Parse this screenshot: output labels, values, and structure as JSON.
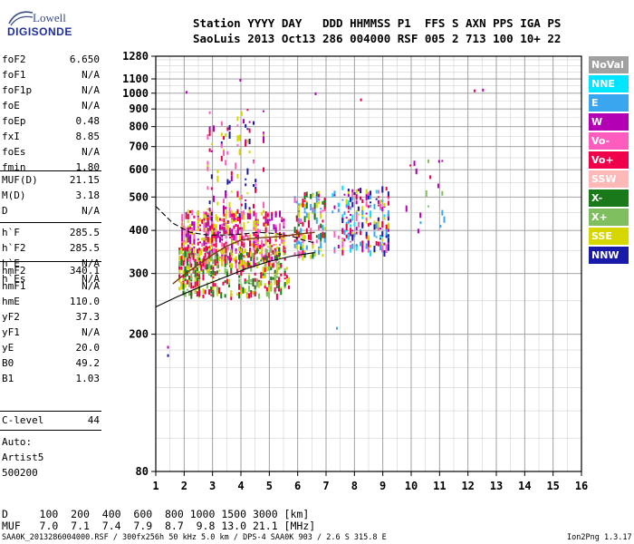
{
  "logo": {
    "line1": "Lowell",
    "line2": "DIGISONDE"
  },
  "header": {
    "line1": "Station YYYY DAY   DDD HHMMSS P1  FFS S AXN PPS IGA PS",
    "line2": "SaoLuis 2013 Oct13 286 004000 RSF 005 2 713 100 10+ 22"
  },
  "params_group1": [
    {
      "k": "foF2",
      "v": "6.650"
    },
    {
      "k": "foF1",
      "v": "N/A"
    },
    {
      "k": "foF1p",
      "v": "N/A"
    },
    {
      "k": "foE",
      "v": "N/A"
    },
    {
      "k": "foEp",
      "v": "0.48"
    },
    {
      "k": "fxI",
      "v": "8.85"
    },
    {
      "k": "foEs",
      "v": "N/A"
    },
    {
      "k": "fmin",
      "v": "1.80"
    }
  ],
  "params_group2": [
    {
      "k": "MUF(D)",
      "v": "21.15"
    },
    {
      "k": "M(D)",
      "v": "3.18"
    },
    {
      "k": "D",
      "v": "N/A"
    }
  ],
  "params_group3": [
    {
      "k": "h`F",
      "v": "285.5"
    },
    {
      "k": "h`F2",
      "v": "285.5"
    },
    {
      "k": "h`E",
      "v": "N/A"
    },
    {
      "k": "h`Es",
      "v": "N/A"
    }
  ],
  "params_group4": [
    {
      "k": "hmF2",
      "v": "340.1"
    },
    {
      "k": "hmF1",
      "v": "N/A"
    },
    {
      "k": "hmE",
      "v": "110.0"
    },
    {
      "k": "yF2",
      "v": "37.3"
    },
    {
      "k": "yF1",
      "v": "N/A"
    },
    {
      "k": "yE",
      "v": "20.0"
    },
    {
      "k": "B0",
      "v": "49.2"
    },
    {
      "k": "B1",
      "v": "1.03"
    }
  ],
  "params_group5": [
    {
      "k": "C-level",
      "v": "44"
    }
  ],
  "notes": {
    "auto": "Auto:",
    "artist": "Artist5",
    "code": "500200"
  },
  "legend": [
    {
      "label": "NoVal",
      "color": "#a0a0a0",
      "text": "#ffffff"
    },
    {
      "label": "NNE",
      "color": "#00e5ff",
      "text": "#ffffff"
    },
    {
      "label": "E",
      "color": "#3ba6f0",
      "text": "#ffffff"
    },
    {
      "label": "W",
      "color": "#b400b4",
      "text": "#ffffff"
    },
    {
      "label": "Vo-",
      "color": "#ff5cc0",
      "text": "#ffffff"
    },
    {
      "label": "Vo+",
      "color": "#f0004a",
      "text": "#ffffff"
    },
    {
      "label": "SSW",
      "color": "#ffb8b8",
      "text": "#ffffff"
    },
    {
      "label": "X-",
      "color": "#1a7a1a",
      "text": "#ffffff"
    },
    {
      "label": "X+",
      "color": "#7fbf5f",
      "text": "#ffffff"
    },
    {
      "label": "SSE",
      "color": "#d6d600",
      "text": "#ffffff"
    },
    {
      "label": "NNW",
      "color": "#1a1aa8",
      "text": "#ffffff"
    }
  ],
  "muf_table": {
    "d_line": "D     100  200  400  600  800 1000 1500 3000 [km]",
    "muf_line": "MUF   7.0  7.1  7.4  7.9  8.7  9.8 13.0 21.1 [MHz]"
  },
  "footer": {
    "left": "SAA0K_2013286004000.RSF / 300fx256h 50 kHz 5.0 km / DPS-4 SAA0K 903 / 2.6 S 315.8 E",
    "right": "Ion2Png 1.3.17"
  },
  "chart_data": {
    "type": "scatter",
    "title": "",
    "xlabel": "",
    "ylabel": "",
    "xlim": [
      1,
      16
    ],
    "ylim": [
      80,
      1280
    ],
    "y_scale": "log",
    "xticks": [
      1,
      2,
      3,
      4,
      5,
      6,
      7,
      8,
      9,
      10,
      11,
      12,
      13,
      14,
      15,
      16
    ],
    "yticks": [
      80,
      200,
      300,
      400,
      500,
      600,
      700,
      800,
      900,
      1000,
      1100,
      1280
    ],
    "grid": true,
    "echo_regions": [
      {
        "name": "o-trace dense",
        "x": [
          1.9,
          5.6
        ],
        "y": [
          320,
          460
        ],
        "density": 0.9,
        "colors": [
          "#f0004a",
          "#ff5cc0",
          "#b400b4",
          "#d6d600"
        ]
      },
      {
        "name": "spread F high",
        "x": [
          2.8,
          4.9
        ],
        "y": [
          430,
          900
        ],
        "density": 0.35,
        "colors": [
          "#b400b4",
          "#f0004a",
          "#ff5cc0",
          "#d6d600",
          "#1a1aa8"
        ]
      },
      {
        "name": "lower trace",
        "x": [
          1.8,
          5.8
        ],
        "y": [
          260,
          360
        ],
        "density": 0.6,
        "colors": [
          "#d6d600",
          "#1a7a1a",
          "#7fbf5f",
          "#f0004a"
        ]
      },
      {
        "name": "mid cluster",
        "x": [
          5.8,
          7.0
        ],
        "y": [
          340,
          520
        ],
        "density": 0.55,
        "colors": [
          "#3ba6f0",
          "#d6d600",
          "#ff5cc0",
          "#f0004a",
          "#1a7a1a"
        ]
      },
      {
        "name": "right cluster",
        "x": [
          7.2,
          9.3
        ],
        "y": [
          350,
          540
        ],
        "density": 0.7,
        "colors": [
          "#3ba6f0",
          "#00e5ff",
          "#d6d600",
          "#b400b4",
          "#ff5cc0",
          "#f0004a",
          "#1a1aa8"
        ]
      },
      {
        "name": "far echoes",
        "x": [
          9.8,
          11.3
        ],
        "y": [
          380,
          660
        ],
        "density": 0.12,
        "colors": [
          "#b400b4",
          "#3ba6f0",
          "#7fbf5f",
          "#f0004a"
        ]
      }
    ],
    "isolated_points": [
      {
        "x": 1.4,
        "y": 185,
        "color": "#b400b4"
      },
      {
        "x": 1.4,
        "y": 175,
        "color": "#1a1aa8"
      },
      {
        "x": 2.05,
        "y": 1015,
        "color": "#b400b4"
      },
      {
        "x": 3.95,
        "y": 1100,
        "color": "#b400b4"
      },
      {
        "x": 12.2,
        "y": 1025,
        "color": "#f0004a"
      },
      {
        "x": 12.5,
        "y": 1030,
        "color": "#b400b4"
      },
      {
        "x": 6.6,
        "y": 1005,
        "color": "#b400b4"
      },
      {
        "x": 7.35,
        "y": 210,
        "color": "#3ba6f0"
      },
      {
        "x": 8.2,
        "y": 965,
        "color": "#f0004a"
      },
      {
        "x": 10.3,
        "y": 425,
        "color": "#3ba6f0"
      },
      {
        "x": 11.0,
        "y": 415,
        "color": "#3ba6f0"
      },
      {
        "x": 10.95,
        "y": 640,
        "color": "#b400b4"
      }
    ],
    "profile_curves": [
      {
        "name": "upper curve",
        "x": [
          1.0,
          1.6,
          2.2,
          2.8,
          3.4,
          4.0,
          4.6,
          5.2,
          5.8,
          6.2,
          6.6
        ],
        "y": [
          470,
          420,
          395,
          388,
          388,
          390,
          395,
          392,
          385,
          375,
          368
        ]
      },
      {
        "name": "lower curve",
        "x": [
          1.0,
          1.8,
          2.6,
          3.4,
          4.2,
          5.0,
          5.8,
          6.6
        ],
        "y": [
          240,
          258,
          275,
          292,
          310,
          325,
          337,
          345
        ]
      },
      {
        "name": "middle curve",
        "x": [
          1.6,
          2.0,
          2.5,
          3.0,
          3.5,
          4.0,
          4.5,
          5.0,
          5.5,
          6.0,
          6.6
        ],
        "y": [
          280,
          298,
          318,
          340,
          360,
          375,
          380,
          382,
          385,
          390,
          395
        ]
      }
    ]
  }
}
